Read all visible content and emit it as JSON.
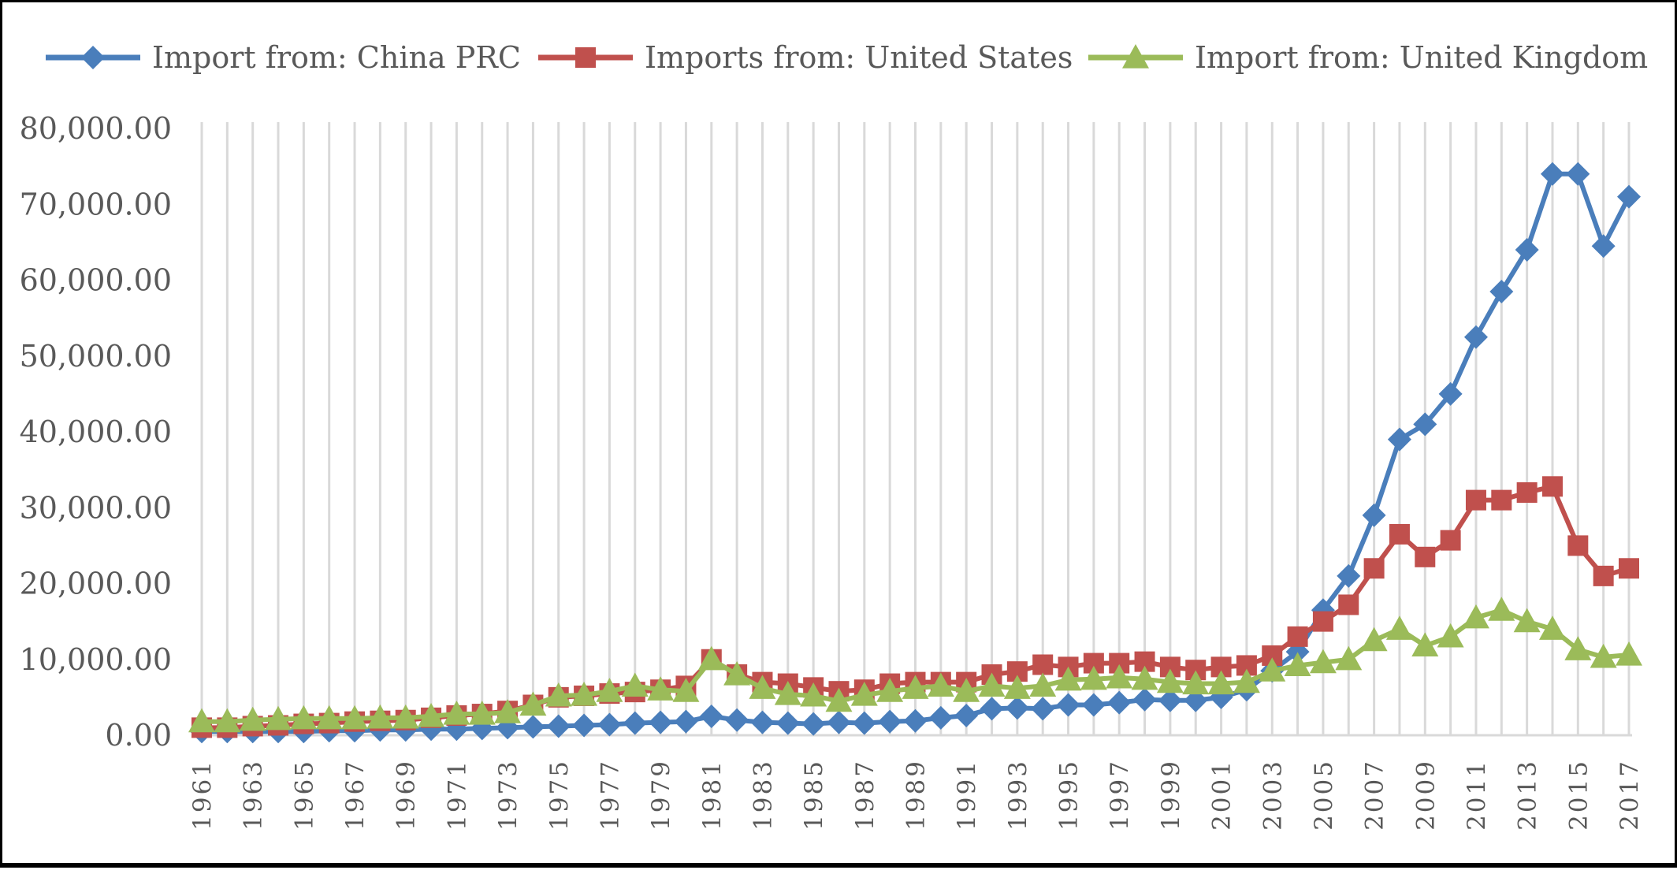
{
  "chart_data": {
    "type": "line",
    "title": "",
    "xlabel": "",
    "ylabel": "",
    "ylim": [
      0,
      80000
    ],
    "yticks": [
      "0.00",
      "10,000.00",
      "20,000.00",
      "30,000.00",
      "40,000.00",
      "50,000.00",
      "60,000.00",
      "70,000.00",
      "80,000.00"
    ],
    "x": [
      1961,
      1962,
      1963,
      1964,
      1965,
      1966,
      1967,
      1968,
      1969,
      1970,
      1971,
      1972,
      1973,
      1974,
      1975,
      1976,
      1977,
      1978,
      1979,
      1980,
      1981,
      1982,
      1983,
      1984,
      1985,
      1986,
      1987,
      1988,
      1989,
      1990,
      1991,
      1992,
      1993,
      1994,
      1995,
      1996,
      1997,
      1998,
      1999,
      2000,
      2001,
      2002,
      2003,
      2004,
      2005,
      2006,
      2007,
      2008,
      2009,
      2010,
      2011,
      2012,
      2013,
      2014,
      2015,
      2016,
      2017
    ],
    "xtick_labels": [
      "1961",
      "1963",
      "1965",
      "1967",
      "1969",
      "1971",
      "1973",
      "1975",
      "1977",
      "1979",
      "1981",
      "1983",
      "1985",
      "1987",
      "1989",
      "1991",
      "1993",
      "1995",
      "1997",
      "1999",
      "2001",
      "2003",
      "2005",
      "2007",
      "2009",
      "2011",
      "2013",
      "2015",
      "2017"
    ],
    "grid": "vertical",
    "legend_position": "top",
    "series": [
      {
        "name": "Import from: China PRC",
        "color": "#4a7ebb",
        "marker": "diamond",
        "values": [
          500,
          500,
          500,
          500,
          500,
          600,
          600,
          700,
          700,
          800,
          800,
          900,
          1000,
          1100,
          1200,
          1300,
          1400,
          1600,
          1700,
          1800,
          2500,
          2000,
          1700,
          1600,
          1500,
          1700,
          1600,
          1800,
          1900,
          2300,
          2600,
          3500,
          3600,
          3500,
          4000,
          4000,
          4300,
          4700,
          4600,
          4600,
          5000,
          6000,
          8500,
          11000,
          16500,
          21000,
          29000,
          39000,
          41000,
          45000,
          52500,
          58500,
          64000,
          74000,
          74000,
          64500,
          71000
        ]
      },
      {
        "name": "Imports from: United States",
        "color": "#c0504d",
        "marker": "square",
        "values": [
          1000,
          1000,
          1200,
          1300,
          1500,
          1600,
          1800,
          1900,
          2000,
          2300,
          2600,
          2800,
          3200,
          4000,
          5000,
          5200,
          5500,
          5700,
          6000,
          6500,
          10000,
          8000,
          7000,
          6800,
          6300,
          5800,
          6000,
          6800,
          7000,
          7000,
          7000,
          8000,
          8400,
          9300,
          9000,
          9500,
          9500,
          9700,
          9000,
          8600,
          9000,
          9200,
          10500,
          13000,
          15000,
          17200,
          22000,
          26500,
          23500,
          25700,
          31000,
          31000,
          32000,
          32800,
          25000,
          21000,
          22000
        ]
      },
      {
        "name": "Import from: United Kingdom",
        "color": "#9bbb59",
        "marker": "triangle",
        "values": [
          1800,
          1800,
          2000,
          2100,
          2200,
          2200,
          2200,
          2300,
          2300,
          2500,
          2800,
          2800,
          3000,
          4000,
          5200,
          5300,
          5800,
          6500,
          6000,
          5800,
          10000,
          8000,
          6200,
          5400,
          5200,
          4500,
          5300,
          5800,
          6200,
          6500,
          5800,
          6500,
          6200,
          6500,
          7300,
          7400,
          7600,
          7400,
          7000,
          6800,
          6800,
          7000,
          8500,
          9200,
          9600,
          10000,
          12500,
          14000,
          11800,
          13000,
          15500,
          16500,
          15000,
          14000,
          11300,
          10300,
          10600
        ]
      }
    ]
  }
}
